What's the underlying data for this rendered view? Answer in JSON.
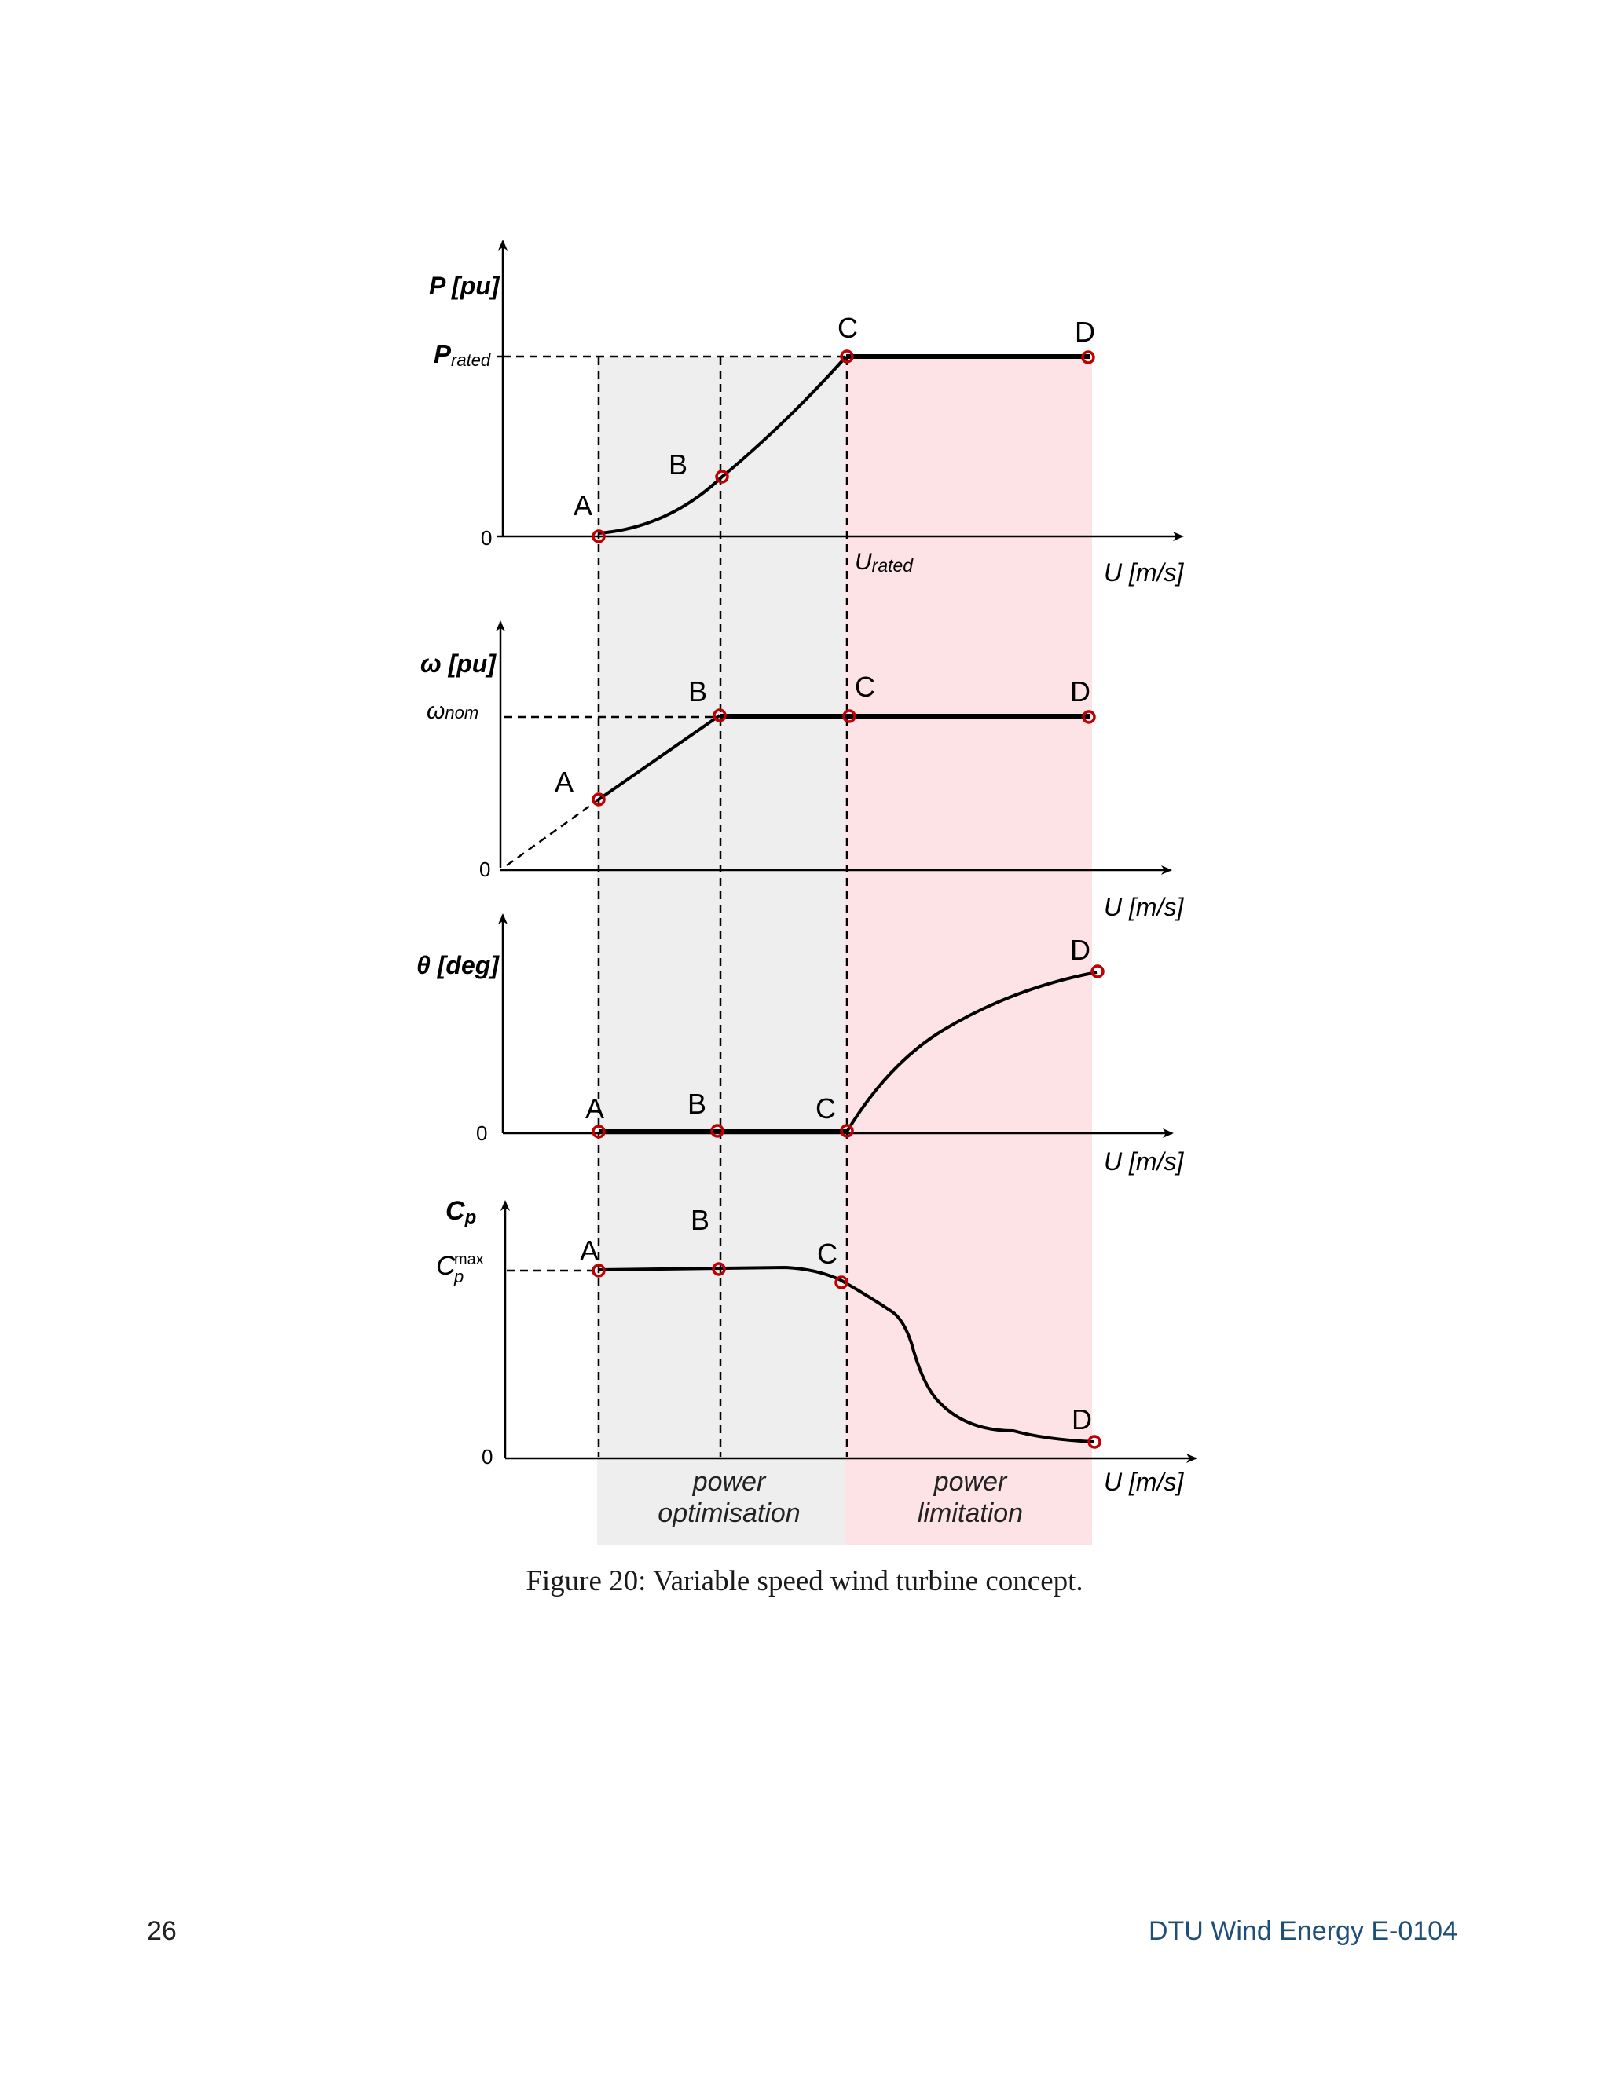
{
  "figure": {
    "caption": "Figure 20: Variable speed wind turbine concept.",
    "regions": [
      {
        "label_line1": "power",
        "label_line2": "optimisation",
        "color": "#eeeeee"
      },
      {
        "label_line1": "power",
        "label_line2": "limitation",
        "color": "#fde3e6"
      }
    ],
    "point_color": "#c00000",
    "panels": [
      {
        "id": "power",
        "y_label_main": "P [pu]",
        "x_label": "U [m/s]",
        "ticks": [
          {
            "main": "P",
            "sub": "rated"
          },
          {
            "main": "0",
            "sub": ""
          }
        ],
        "x_tick": {
          "main": "U",
          "sub": "rated"
        },
        "points": [
          "A",
          "B",
          "C",
          "D"
        ]
      },
      {
        "id": "rotor-speed",
        "y_label_main": "ω [pu]",
        "x_label": "U [m/s]",
        "ticks": [
          {
            "main": "ω",
            "sub": "nom"
          },
          {
            "main": "0",
            "sub": ""
          }
        ],
        "points": [
          "A",
          "B",
          "C",
          "D"
        ]
      },
      {
        "id": "pitch",
        "y_label_main": "θ [deg]",
        "x_label": "U [m/s]",
        "ticks": [
          {
            "main": "0",
            "sub": ""
          }
        ],
        "points": [
          "A",
          "B",
          "C",
          "D"
        ]
      },
      {
        "id": "cp",
        "y_label_main": "C",
        "y_label_sub": "p",
        "x_label": "U [m/s]",
        "ticks": [
          {
            "main": "C",
            "sup": "max",
            "sub": "p"
          },
          {
            "main": "0",
            "sub": ""
          }
        ],
        "points": [
          "A",
          "B",
          "C",
          "D"
        ]
      }
    ]
  },
  "footer": {
    "page_number": "26",
    "report_label": "DTU Wind Energy E-0104"
  }
}
